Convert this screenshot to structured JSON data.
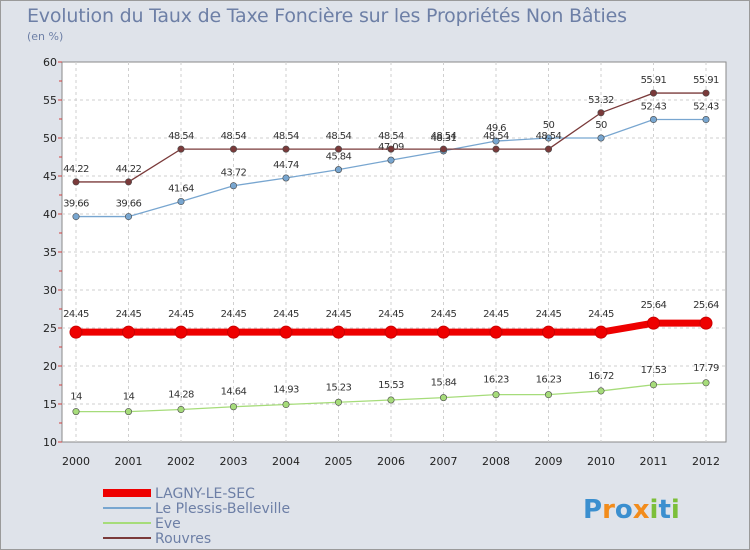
{
  "chart_data": {
    "type": "line",
    "title": "Evolution du Taux de Taxe Foncière sur les Propriétés Non Bâties",
    "subtitle": "(en %)",
    "x": [
      "2000",
      "2001",
      "2002",
      "2003",
      "2004",
      "2005",
      "2006",
      "2007",
      "2008",
      "2009",
      "2010",
      "2011",
      "2012"
    ],
    "ylim": [
      10,
      60
    ],
    "yticks": [
      "10",
      "15",
      "20",
      "25",
      "30",
      "35",
      "40",
      "45",
      "50",
      "55",
      "60"
    ],
    "grid": true,
    "legend_position": "bottom-left",
    "series": [
      {
        "name": "LAGNY-LE-SEC",
        "color": "#ee0000",
        "values": [
          24.45,
          24.45,
          24.45,
          24.45,
          24.45,
          24.45,
          24.45,
          24.45,
          24.45,
          24.45,
          24.45,
          25.64,
          25.64
        ],
        "labels": [
          "24.45",
          "24.45",
          "24.45",
          "24.45",
          "24.45",
          "24.45",
          "24.45",
          "24.45",
          "24.45",
          "24.45",
          "24.45",
          "25.64",
          "25.64"
        ]
      },
      {
        "name": "Le Plessis-Belleville",
        "color": "#78a6d0",
        "values": [
          39.66,
          39.66,
          41.64,
          43.72,
          44.74,
          45.84,
          47.09,
          48.31,
          49.6,
          50,
          50,
          52.43,
          52.43
        ],
        "labels": [
          "39.66",
          "39.66",
          "41.64",
          "43.72",
          "44.74",
          "45.84",
          "47.09",
          "48.31",
          "49.6",
          "50",
          "50",
          "52.43",
          "52.43"
        ]
      },
      {
        "name": "Eve",
        "color": "#a6dc7a",
        "values": [
          14,
          14,
          14.28,
          14.64,
          14.93,
          15.23,
          15.53,
          15.84,
          16.23,
          16.23,
          16.72,
          17.53,
          17.79
        ],
        "labels": [
          "14",
          "14",
          "14.28",
          "14.64",
          "14.93",
          "15.23",
          "15.53",
          "15.84",
          "16.23",
          "16.23",
          "16.72",
          "17.53",
          "17.79"
        ]
      },
      {
        "name": "Rouvres",
        "color": "#7a3a3a",
        "values": [
          44.22,
          44.22,
          48.54,
          48.54,
          48.54,
          48.54,
          48.54,
          48.54,
          48.54,
          48.54,
          53.32,
          55.91,
          55.91
        ],
        "labels": [
          "44.22",
          "44.22",
          "48.54",
          "48.54",
          "48.54",
          "48.54",
          "48.54",
          "48.54",
          "48.54",
          "48.54",
          "53.32",
          "55.91",
          "55.91"
        ]
      }
    ]
  },
  "watermark": "Proxiti"
}
